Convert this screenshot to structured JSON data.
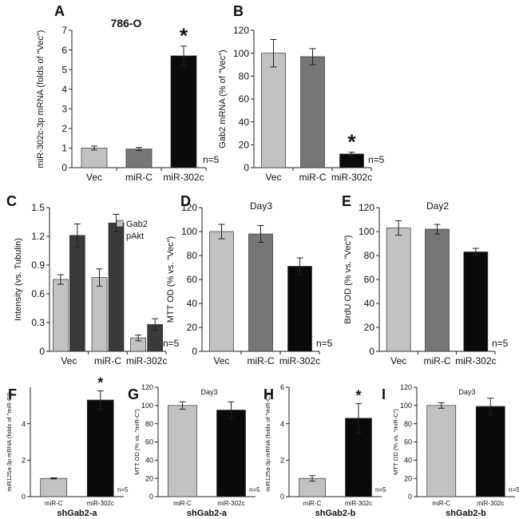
{
  "colors": {
    "light": "#c2c2c2",
    "mid": "#767676",
    "dark": "#3a3a3a",
    "black": "#0a0a0a"
  },
  "chart_data": [
    {
      "panel": "A",
      "type": "bar",
      "title": "786-O",
      "ylabel": "miR-302c-3p mRNA (folds of \"Vec\")",
      "xlabel": "",
      "ylim": [
        0,
        7
      ],
      "yticks": [
        0,
        1,
        2,
        3,
        4,
        5,
        6,
        7
      ],
      "categories": [
        "Vec",
        "miR-C",
        "miR-302c"
      ],
      "values": [
        1.0,
        0.95,
        5.7
      ],
      "errors": [
        0.1,
        0.08,
        0.5
      ],
      "bar_colors": [
        "light",
        "mid",
        "black"
      ],
      "significance": [
        null,
        null,
        "*"
      ],
      "n_label": "n=5"
    },
    {
      "panel": "B",
      "type": "bar",
      "title": "",
      "ylabel": "Gab2 mRNA (% of \"Vec\")",
      "xlabel": "",
      "ylim": [
        0,
        120
      ],
      "yticks": [
        0,
        20,
        40,
        60,
        80,
        100,
        120
      ],
      "categories": [
        "Vec",
        "miR-C",
        "miR-302c"
      ],
      "values": [
        100,
        97,
        12
      ],
      "errors": [
        12,
        7,
        1.5
      ],
      "bar_colors": [
        "light",
        "mid",
        "black"
      ],
      "significance": [
        null,
        null,
        "*"
      ],
      "n_label": "n=5"
    },
    {
      "panel": "C",
      "type": "bar",
      "title": "",
      "ylabel": "Intensity (vs. Tubulin)",
      "xlabel": "",
      "ylim": [
        0,
        1.5
      ],
      "yticks": [
        "0",
        "0.3",
        "0.6",
        "0.9",
        "1.2",
        "1.5"
      ],
      "ytick_values": [
        0,
        0.3,
        0.6,
        0.9,
        1.2,
        1.5
      ],
      "categories": [
        "Vec",
        "miR-C",
        "miR-302c"
      ],
      "series": [
        {
          "name": "Gab2",
          "color": "light",
          "values": [
            0.75,
            0.77,
            0.14
          ],
          "errors": [
            0.05,
            0.09,
            0.03
          ]
        },
        {
          "name": "pAkt",
          "color": "dark",
          "values": [
            1.21,
            1.34,
            0.28
          ],
          "errors": [
            0.12,
            0.09,
            0.06
          ]
        }
      ],
      "legend": "top-right",
      "n_label": "n=5"
    },
    {
      "panel": "D",
      "type": "bar",
      "title": "Day3",
      "ylabel": "MTT OD (% vs. \"Vec\")",
      "xlabel": "",
      "ylim": [
        0,
        120
      ],
      "yticks": [
        0,
        20,
        40,
        60,
        80,
        100,
        120
      ],
      "categories": [
        "Vec",
        "miR-C",
        "miR-302c"
      ],
      "values": [
        100,
        98,
        71
      ],
      "errors": [
        6,
        7,
        7
      ],
      "bar_colors": [
        "light",
        "mid",
        "black"
      ],
      "significance": [
        null,
        null,
        null
      ],
      "n_label": "n=5"
    },
    {
      "panel": "E",
      "type": "bar",
      "title": "Day2",
      "ylabel": "BrdU OD (% vs. \"Vec\")",
      "xlabel": "",
      "ylim": [
        0,
        120
      ],
      "yticks": [
        0,
        20,
        40,
        60,
        80,
        100,
        120
      ],
      "categories": [
        "Vec",
        "miR-C",
        "miR-302c"
      ],
      "values": [
        103,
        102,
        83
      ],
      "errors": [
        6,
        4,
        3
      ],
      "bar_colors": [
        "light",
        "mid",
        "black"
      ],
      "significance": [
        null,
        null,
        null
      ],
      "n_label": "n=5"
    },
    {
      "panel": "F",
      "type": "bar",
      "title": "",
      "ylabel": "miR125a-3p mRNA (folds of \"miR-C\")",
      "xlabel": "shGab2-a",
      "ylim": [
        0,
        6
      ],
      "yticks": [
        0,
        2,
        4
      ],
      "categories": [
        "miR-C",
        "miR-302c"
      ],
      "values": [
        1.0,
        5.3
      ],
      "errors": [
        0.03,
        0.5
      ],
      "bar_colors": [
        "light",
        "black"
      ],
      "significance": [
        null,
        "*"
      ],
      "n_label": "n=5"
    },
    {
      "panel": "G",
      "type": "bar",
      "title": "Day3",
      "ylabel": "MTT OD (% vs. \"miR-C\")",
      "xlabel": "shGab2-a",
      "ylim": [
        0,
        120
      ],
      "yticks": [
        0,
        20,
        40,
        60,
        80,
        100,
        120
      ],
      "categories": [
        "miR-C",
        "miR-302c"
      ],
      "values": [
        100,
        95
      ],
      "errors": [
        4,
        9
      ],
      "bar_colors": [
        "light",
        "black"
      ],
      "significance": [
        null,
        null
      ],
      "n_label": "n=5"
    },
    {
      "panel": "H",
      "type": "bar",
      "title": "",
      "ylabel": "miR125a-3p mRNA (folds of \"miR-C\")",
      "xlabel": "shGab2-b",
      "ylim": [
        0,
        6
      ],
      "yticks": [
        0,
        2,
        4,
        6
      ],
      "categories": [
        "miR-C",
        "miR-302c"
      ],
      "values": [
        1.0,
        4.3
      ],
      "errors": [
        0.15,
        0.8
      ],
      "bar_colors": [
        "light",
        "black"
      ],
      "significance": [
        null,
        "*"
      ],
      "n_label": "n=5"
    },
    {
      "panel": "I",
      "type": "bar",
      "title": "Day3",
      "ylabel": "MTT OD (% vs. \"miR-C\")",
      "xlabel": "shGab2-b",
      "ylim": [
        0,
        120
      ],
      "yticks": [
        0,
        20,
        40,
        60,
        80,
        100,
        120
      ],
      "categories": [
        "miR-C",
        "miR-302c"
      ],
      "values": [
        100,
        99
      ],
      "errors": [
        3,
        9
      ],
      "bar_colors": [
        "light",
        "black"
      ],
      "significance": [
        null,
        null
      ],
      "n_label": "n=5"
    }
  ]
}
